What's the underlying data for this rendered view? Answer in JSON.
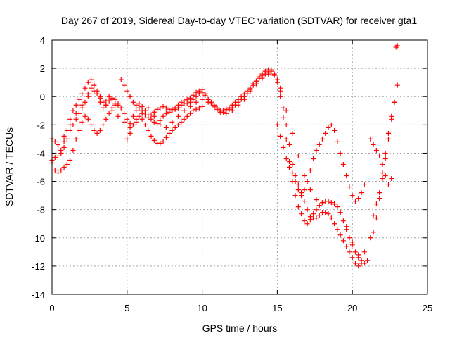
{
  "chart_data": {
    "type": "scatter",
    "title": "Day 267 of 2019, Sidereal Day-to-day VTEC variation (SDTVAR) for receiver gta1",
    "xlabel": "GPS time / hours",
    "ylabel": "SDTVAR / TECUs",
    "xlim": [
      0,
      25
    ],
    "ylim": [
      -14,
      4
    ],
    "xticks": [
      0,
      5,
      10,
      15,
      20,
      25
    ],
    "yticks": [
      -14,
      -12,
      -10,
      -8,
      -6,
      -4,
      -2,
      0,
      2,
      4
    ],
    "grid": true,
    "marker": "plus",
    "color": "#ff0000",
    "series": [
      {
        "x": [
          0.0,
          0.2,
          0.4,
          0.6,
          0.8,
          1.0,
          1.2,
          1.4,
          1.6,
          1.8,
          2.0,
          2.2,
          2.4,
          2.6,
          2.8,
          3.0,
          3.2,
          3.4,
          3.6,
          3.8,
          4.0,
          4.2,
          4.4,
          4.6,
          4.8,
          5.0,
          5.2,
          5.4,
          5.6,
          5.8,
          6.0,
          6.2,
          6.4,
          6.6,
          6.8,
          7.0,
          7.2,
          7.4,
          7.6,
          7.8,
          8.0,
          8.2,
          8.4,
          8.6,
          8.8,
          9.0,
          9.2,
          9.4,
          9.6,
          9.8,
          10.0,
          10.2,
          10.4,
          10.6,
          10.8,
          11.0,
          11.2,
          11.4,
          11.6,
          11.8,
          12.0,
          12.2,
          12.4,
          12.6,
          12.8,
          13.0,
          13.2,
          13.4,
          13.6,
          13.8,
          14.0,
          14.2,
          14.4,
          14.6,
          14.8,
          15.0,
          15.2,
          15.4,
          15.6,
          15.8,
          16.0,
          16.2,
          16.4,
          16.6,
          16.8,
          17.0,
          17.2,
          17.4,
          17.6,
          17.8,
          18.0,
          18.2,
          18.4,
          18.6,
          18.8,
          19.0,
          19.2,
          19.4,
          19.6,
          19.8,
          20.0,
          20.2,
          20.4,
          20.6,
          20.8,
          21.0
        ],
        "y": [
          -4.5,
          -4.3,
          -4.2,
          -4.0,
          -3.6,
          -3.0,
          -2.4,
          -2.0,
          -1.6,
          -1.2,
          -0.8,
          -0.4,
          0.2,
          0.6,
          0.8,
          0.4,
          -0.1,
          -0.4,
          -0.3,
          0.0,
          -0.2,
          -0.5,
          -0.6,
          -0.8,
          -1.2,
          -1.6,
          -1.9,
          -1.4,
          -1.0,
          -0.8,
          -1.0,
          -1.3,
          -1.5,
          -1.3,
          -1.1,
          -0.9,
          -0.8,
          -0.7,
          -0.8,
          -0.9,
          -0.9,
          -0.8,
          -0.6,
          -0.4,
          -0.3,
          -0.2,
          -0.1,
          0.1,
          0.3,
          0.4,
          0.5,
          0.2,
          -0.2,
          -0.5,
          -0.7,
          -0.9,
          -1.0,
          -1.1,
          -1.0,
          -0.9,
          -0.8,
          -0.6,
          -0.4,
          -0.2,
          0.0,
          0.2,
          0.5,
          0.8,
          1.1,
          1.4,
          1.6,
          1.8,
          1.9,
          1.9,
          1.6,
          1.0,
          0.0,
          -1.5,
          -3.0,
          -4.6,
          -6.0,
          -7.0,
          -7.8,
          -8.3,
          -8.8,
          -9.0,
          -8.7,
          -8.3,
          -8.0,
          -7.7,
          -7.5,
          -7.4,
          -7.4,
          -7.5,
          -7.6,
          -7.8,
          -8.2,
          -8.8,
          -9.4,
          -10.0,
          -10.5,
          -11.0,
          -11.4,
          -11.6,
          -11.8,
          -11.6
        ]
      },
      {
        "x": [
          0.0,
          0.2,
          0.4,
          0.6,
          0.8,
          1.0,
          1.2,
          1.4,
          1.6,
          1.8,
          2.0,
          2.2,
          2.4,
          2.6,
          2.8,
          3.0,
          3.2,
          3.4,
          3.6,
          3.8,
          4.0,
          4.2,
          4.6,
          4.8,
          5.0,
          5.2,
          5.4,
          5.6,
          5.8,
          6.0,
          6.2,
          6.4,
          6.6,
          6.8,
          7.0,
          7.2,
          7.4,
          7.6,
          7.8,
          8.0,
          8.2,
          8.4,
          8.6,
          8.8,
          9.0,
          9.2,
          9.4,
          9.6,
          9.8,
          10.0,
          10.2,
          10.4,
          10.6,
          10.8,
          11.0,
          11.2,
          11.4,
          11.6,
          11.8,
          12.0,
          12.2,
          12.4,
          12.6,
          12.8,
          13.0,
          13.2,
          13.4,
          13.6,
          13.8,
          14.0,
          14.2,
          14.4,
          14.6,
          14.8,
          15.0,
          15.2,
          15.4,
          15.6,
          15.8,
          16.0,
          16.2,
          16.4,
          16.6,
          16.8,
          17.0,
          17.2,
          17.4,
          17.6,
          17.8,
          18.0,
          18.2,
          18.4,
          18.6,
          18.8,
          19.0,
          19.2,
          19.4,
          19.6,
          19.8,
          20.0,
          20.2,
          20.4,
          20.6
        ],
        "y": [
          -3.0,
          -3.2,
          -3.5,
          -3.8,
          -3.2,
          -2.4,
          -1.6,
          -1.0,
          -0.6,
          -0.2,
          0.2,
          0.6,
          1.0,
          1.2,
          0.8,
          0.2,
          -0.4,
          -0.8,
          -0.6,
          -0.3,
          -0.1,
          -0.2,
          1.2,
          0.8,
          0.4,
          0.0,
          -0.4,
          -0.6,
          -0.5,
          -0.7,
          -1.0,
          -1.3,
          -1.6,
          -1.8,
          -1.9,
          -1.7,
          -1.4,
          -1.2,
          -1.1,
          -1.0,
          -0.9,
          -0.8,
          -0.6,
          -0.5,
          -0.5,
          -0.4,
          -0.2,
          0.0,
          0.2,
          0.3,
          0.1,
          -0.2,
          -0.4,
          -0.6,
          -0.8,
          -1.0,
          -1.0,
          -0.9,
          -0.8,
          -0.6,
          -0.4,
          -0.2,
          0.0,
          0.2,
          0.4,
          0.6,
          0.9,
          1.1,
          1.3,
          1.5,
          1.6,
          1.7,
          1.8,
          1.6,
          1.2,
          0.4,
          -0.8,
          -2.0,
          -3.4,
          -4.8,
          -5.6,
          -6.2,
          -6.8,
          -7.4,
          -8.0,
          -8.5,
          -8.6,
          -8.6,
          -8.4,
          -8.2,
          -8.2,
          -8.3,
          -8.6,
          -9.0,
          -9.4,
          -9.8,
          -10.2,
          -10.6,
          -11.0,
          -11.4,
          -11.8,
          -12.0,
          -11.8
        ]
      },
      {
        "x": [
          0.0,
          0.2,
          0.4,
          0.6,
          0.8,
          1.0,
          1.2,
          1.4,
          1.6,
          1.8,
          2.0,
          2.2,
          2.4,
          2.6,
          2.8,
          3.0,
          3.2,
          3.4,
          3.6,
          3.8,
          4.0,
          4.2,
          4.4,
          5.0,
          5.2,
          5.4,
          5.6,
          5.8,
          6.0,
          6.2,
          6.4,
          6.6,
          6.8,
          7.0,
          7.2,
          7.4,
          7.6,
          7.8,
          8.0,
          8.2,
          8.4,
          8.6,
          8.8,
          9.0,
          9.2,
          9.4,
          9.6,
          9.8,
          10.0,
          15.0,
          15.2,
          15.4,
          15.6,
          15.8,
          16.0,
          16.2,
          16.4,
          16.6,
          16.8,
          17.0,
          17.2,
          17.4,
          17.6,
          17.8,
          18.0,
          18.2,
          18.4,
          18.6,
          18.8,
          19.0,
          19.2,
          19.4,
          19.6,
          19.8,
          20.0,
          20.2,
          20.4,
          20.6,
          20.8
        ],
        "y": [
          -4.7,
          -5.2,
          -5.4,
          -5.2,
          -5.0,
          -4.8,
          -4.5,
          -3.8,
          -3.0,
          -2.4,
          -1.8,
          -1.4,
          -1.6,
          -2.0,
          -2.4,
          -2.6,
          -2.4,
          -2.0,
          -1.6,
          -1.2,
          -0.8,
          -0.6,
          -0.5,
          -3.0,
          -2.6,
          -2.0,
          -1.6,
          -1.4,
          -1.6,
          -2.0,
          -2.4,
          -2.8,
          -3.1,
          -3.3,
          -3.3,
          -3.2,
          -2.9,
          -2.6,
          -2.4,
          -2.2,
          -2.0,
          -1.8,
          -1.6,
          -1.4,
          -1.2,
          -1.0,
          -0.9,
          -0.8,
          -0.7,
          -2.0,
          -2.8,
          -3.6,
          -4.4,
          -5.0,
          -5.4,
          -6.0,
          -6.6,
          -7.0,
          -6.6,
          -6.0,
          -5.2,
          -4.4,
          -3.8,
          -3.4,
          -3.0,
          -2.6,
          -2.2,
          -2.0,
          -2.4,
          -3.2,
          -4.0,
          -4.8,
          -5.6,
          -6.4,
          -7.0,
          -7.4,
          -7.2,
          -6.8,
          -6.2
        ]
      },
      {
        "x": [
          0.4,
          0.8,
          1.2,
          1.6,
          2.0,
          2.4,
          2.8,
          3.2,
          3.6,
          4.0,
          4.4,
          4.8,
          5.2,
          5.6,
          6.0,
          6.4,
          6.8,
          7.2,
          7.6,
          8.0,
          8.4,
          8.8,
          9.2,
          9.6,
          10.0,
          10.4,
          10.8,
          11.2,
          11.6,
          12.0,
          12.4,
          12.8,
          13.2,
          13.6,
          14.0,
          14.4,
          14.8,
          15.2,
          15.6,
          16.0,
          16.4,
          16.8,
          17.2,
          17.6,
          18.0,
          18.4,
          18.8,
          19.2,
          19.6,
          20.0,
          20.4,
          20.8
        ],
        "y": [
          -3.4,
          -2.8,
          -2.0,
          -1.2,
          -0.6,
          0.0,
          0.4,
          0.0,
          -0.6,
          -1.0,
          -1.4,
          -1.8,
          -2.2,
          -1.8,
          -1.2,
          -0.8,
          -1.4,
          -2.0,
          -2.2,
          -1.8,
          -1.4,
          -1.0,
          -0.7,
          -0.4,
          -0.2,
          -0.4,
          -0.8,
          -1.1,
          -1.2,
          -1.0,
          -0.6,
          -0.2,
          0.4,
          0.9,
          1.3,
          1.6,
          1.5,
          0.6,
          -1.0,
          -2.6,
          -4.2,
          -5.6,
          -6.6,
          -7.3,
          -7.5,
          -7.4,
          -7.6,
          -8.2,
          -9.2,
          -10.3,
          -11.2,
          -11.0
        ]
      },
      {
        "x": [
          21.2,
          21.4,
          21.6,
          21.8,
          22.0,
          22.2,
          22.4,
          22.6,
          22.8,
          23.0
        ],
        "y": [
          -10.0,
          -9.6,
          -8.6,
          -7.2,
          -5.8,
          -4.4,
          -3.0,
          -1.6,
          -0.4,
          0.8
        ]
      },
      {
        "x": [
          21.2,
          21.4,
          21.6,
          21.8,
          22.0,
          22.2,
          22.4,
          22.6
        ],
        "y": [
          -3.0,
          -3.4,
          -3.8,
          -4.2,
          -4.8,
          -5.6,
          -6.2,
          -5.8
        ]
      },
      {
        "x": [
          21.4,
          21.6,
          21.8,
          22.0,
          22.2,
          22.4,
          22.6,
          22.8
        ],
        "y": [
          -8.4,
          -7.6,
          -6.8,
          -5.4,
          -4.0,
          -2.6,
          -1.4,
          -0.4
        ]
      },
      {
        "x": [
          22.9,
          23.0
        ],
        "y": [
          3.5,
          3.6
        ]
      }
    ]
  }
}
